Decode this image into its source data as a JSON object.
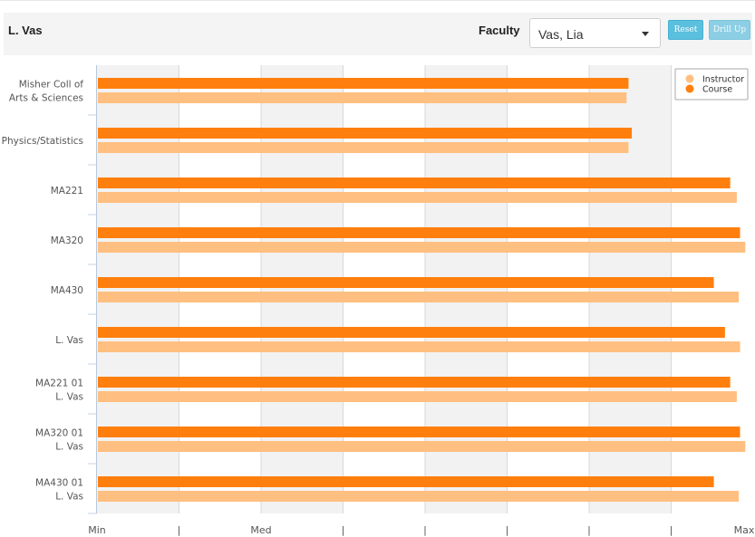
{
  "header": {
    "title": "L. Vas",
    "faculty_label": "Faculty",
    "faculty_value": "Vas, Lia",
    "reset_label": "Reset",
    "drill_up_label": "Drill Up"
  },
  "colors": {
    "instructor": "#ffbf80",
    "course": "#ff7f0e",
    "band": "#f2f2f2",
    "grid": "#d8d8d8"
  },
  "chart_data": {
    "type": "bar",
    "orientation": "horizontal",
    "categories": [
      [
        "Misher Coll of",
        "Arts & Sciences"
      ],
      [
        "Physics/Statistics"
      ],
      [
        "MA221"
      ],
      [
        "MA320"
      ],
      [
        "MA430"
      ],
      [
        "L. Vas"
      ],
      [
        "MA221 01",
        "L. Vas"
      ],
      [
        "MA320 01",
        "L. Vas"
      ],
      [
        "MA430 01",
        "L. Vas"
      ]
    ],
    "series": [
      {
        "name": "Course",
        "values": [
          0.81,
          0.815,
          0.965,
          0.98,
          0.94,
          0.957,
          0.965,
          0.98,
          0.94
        ]
      },
      {
        "name": "Instructor",
        "values": [
          0.807,
          0.81,
          0.975,
          0.988,
          0.978,
          0.98,
          0.975,
          0.988,
          0.978
        ]
      }
    ],
    "x_range": [
      0,
      1
    ],
    "x_tick_labels": [
      "Min",
      "|",
      "Med",
      "|",
      "|",
      "|",
      "|",
      "|",
      "Max"
    ],
    "legend": [
      {
        "name": "Instructor"
      },
      {
        "name": "Course"
      }
    ],
    "legend_position": "top-right",
    "grid": true
  }
}
